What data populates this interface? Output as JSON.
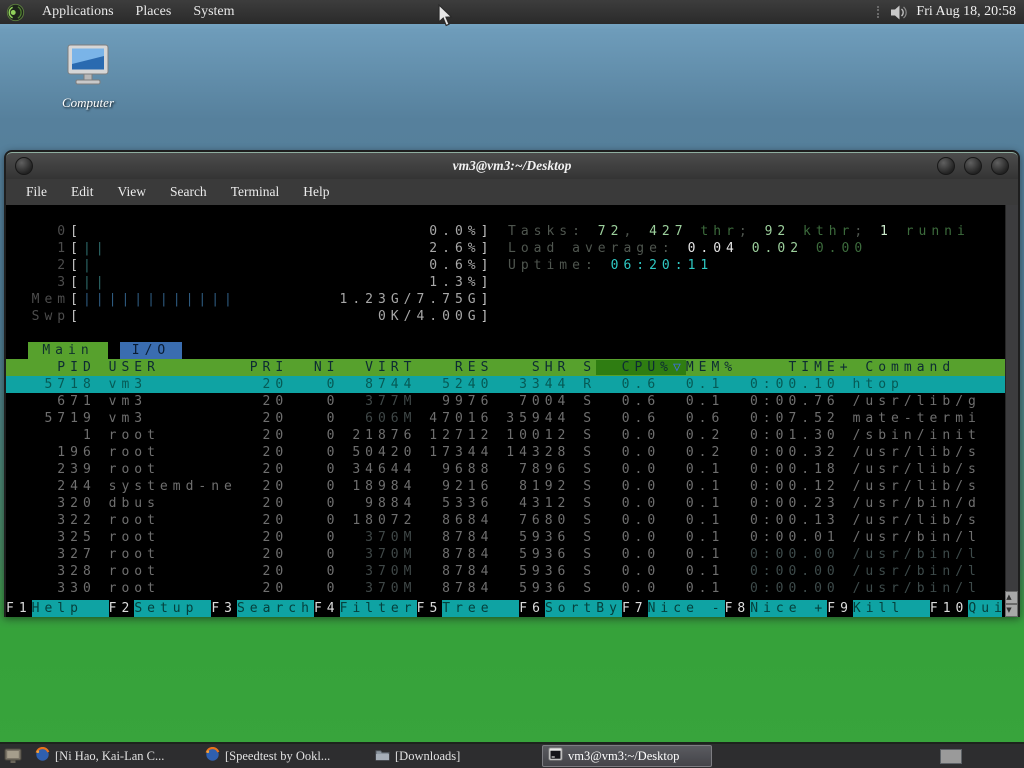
{
  "panel": {
    "menus": [
      "Applications",
      "Places",
      "System"
    ],
    "clock": "Fri Aug 18, 20:58"
  },
  "desktop": {
    "computer_label": "Computer"
  },
  "window": {
    "title": "vm3@vm3:~/Desktop",
    "menus": [
      "File",
      "Edit",
      "View",
      "Search",
      "Terminal",
      "Help"
    ]
  },
  "htop": {
    "meters": [
      {
        "label": "0",
        "bar": "",
        "value": "0.0%"
      },
      {
        "label": "1",
        "bar": "||",
        "value": "2.6%"
      },
      {
        "label": "2",
        "bar": "|",
        "value": "0.6%"
      },
      {
        "label": "3",
        "bar": "||",
        "value": "1.3%"
      },
      {
        "label": "Mem",
        "bar": "||||||||||||",
        "value": "1.23G/7.75G"
      },
      {
        "label": "Swp",
        "bar": "",
        "value": "0K/4.00G"
      }
    ],
    "info_lines": [
      [
        {
          "t": "Tasks: ",
          "c": "lbl"
        },
        {
          "t": "72",
          "c": "num"
        },
        {
          "t": ", ",
          "c": "lbl"
        },
        {
          "t": "427",
          "c": "num"
        },
        {
          "t": " thr",
          "c": "dkg"
        },
        {
          "t": "; ",
          "c": "lbl"
        },
        {
          "t": "92",
          "c": "num"
        },
        {
          "t": " kthr",
          "c": "dkg"
        },
        {
          "t": "; ",
          "c": "lbl"
        },
        {
          "t": "1",
          "c": "brt"
        },
        {
          "t": " runni",
          "c": "dkg"
        }
      ],
      [
        {
          "t": "Load average: ",
          "c": "lbl"
        },
        {
          "t": "0.04 ",
          "c": "wht"
        },
        {
          "t": "0.02 ",
          "c": "num"
        },
        {
          "t": "0.00",
          "c": "dkg"
        }
      ],
      [
        {
          "t": "Uptime: ",
          "c": "lbl"
        },
        {
          "t": "06:20:11",
          "c": "cyn"
        }
      ]
    ],
    "tabs": [
      {
        "label": "Main",
        "style": "green"
      },
      {
        "label": "I/O",
        "style": "blue"
      }
    ],
    "header": {
      "cols_left": "    PID USER       PRI  NI  VIRT   RES   SHR S",
      "sort_col": "  CPU%",
      "sort_arrow": "▽",
      "cols_right": "MEM%    TIME+ Command"
    },
    "selected_row": [
      "5718",
      "vm3",
      "20",
      "0",
      "8744",
      "5240",
      "3344",
      "R",
      "0.6",
      "0.1",
      "0:00.10",
      "htop"
    ],
    "rows": [
      [
        "671",
        "vm3",
        "20",
        "0",
        "377M",
        "9976",
        "7004",
        "S",
        "0.6",
        "0.1",
        "0:00.76",
        "/usr/lib/g"
      ],
      [
        "5719",
        "vm3",
        "20",
        "0",
        "606M",
        "47016",
        "35944",
        "S",
        "0.6",
        "0.6",
        "0:07.52",
        "mate-termi"
      ],
      [
        "1",
        "root",
        "20",
        "0",
        "21876",
        "12712",
        "10012",
        "S",
        "0.0",
        "0.2",
        "0:01.30",
        "/sbin/init"
      ],
      [
        "196",
        "root",
        "20",
        "0",
        "50420",
        "17344",
        "14328",
        "S",
        "0.0",
        "0.2",
        "0:00.32",
        "/usr/lib/s"
      ],
      [
        "239",
        "root",
        "20",
        "0",
        "34644",
        "9688",
        "7896",
        "S",
        "0.0",
        "0.1",
        "0:00.18",
        "/usr/lib/s"
      ],
      [
        "244",
        "systemd-ne",
        "20",
        "0",
        "18984",
        "9216",
        "8192",
        "S",
        "0.0",
        "0.1",
        "0:00.12",
        "/usr/lib/s"
      ],
      [
        "320",
        "dbus",
        "20",
        "0",
        "9884",
        "5336",
        "4312",
        "S",
        "0.0",
        "0.1",
        "0:00.23",
        "/usr/bin/d"
      ],
      [
        "322",
        "root",
        "20",
        "0",
        "18072",
        "8684",
        "7680",
        "S",
        "0.0",
        "0.1",
        "0:00.13",
        "/usr/lib/s"
      ],
      [
        "325",
        "root",
        "20",
        "0",
        "370M",
        "8784",
        "5936",
        "S",
        "0.0",
        "0.1",
        "0:00.01",
        "/usr/bin/l"
      ],
      [
        "327",
        "root",
        "20",
        "0",
        "370M",
        "8784",
        "5936",
        "S",
        "0.0",
        "0.1",
        "0:00.00",
        "/usr/bin/l"
      ],
      [
        "328",
        "root",
        "20",
        "0",
        "370M",
        "8784",
        "5936",
        "S",
        "0.0",
        "0.1",
        "0:00.00",
        "/usr/bin/l"
      ],
      [
        "330",
        "root",
        "20",
        "0",
        "370M",
        "8784",
        "5936",
        "S",
        "0.0",
        "0.1",
        "0:00.00",
        "/usr/bin/l"
      ]
    ],
    "dim_rows": [
      9,
      10,
      11
    ],
    "fkeys": [
      {
        "key": "F1",
        "label": "Help"
      },
      {
        "key": "F2",
        "label": "Setup"
      },
      {
        "key": "F3",
        "label": "Search"
      },
      {
        "key": "F4",
        "label": "Filter"
      },
      {
        "key": "F5",
        "label": "Tree"
      },
      {
        "key": "F6",
        "label": "SortBy"
      },
      {
        "key": "F7",
        "label": "Nice -"
      },
      {
        "key": "F8",
        "label": "Nice +"
      },
      {
        "key": "F9",
        "label": "Kill"
      },
      {
        "key": "F10",
        "label": "Quit"
      }
    ]
  },
  "taskbar": {
    "items": [
      {
        "label": "[Ni Hao, Kai-Lan C...",
        "icon": "firefox",
        "active": false
      },
      {
        "label": "[Speedtest by Ookl...",
        "icon": "firefox",
        "active": false
      },
      {
        "label": "[Downloads]",
        "icon": "folder",
        "active": false
      },
      {
        "label": "vm3@vm3:~/Desktop",
        "icon": "terminal",
        "active": true
      }
    ]
  },
  "colors": {
    "header_green": "#57a12d",
    "tab_blue": "#3a6db0",
    "selected_cyan": "#0fa3a3",
    "uptime_cyan": "#2fc9c4"
  }
}
